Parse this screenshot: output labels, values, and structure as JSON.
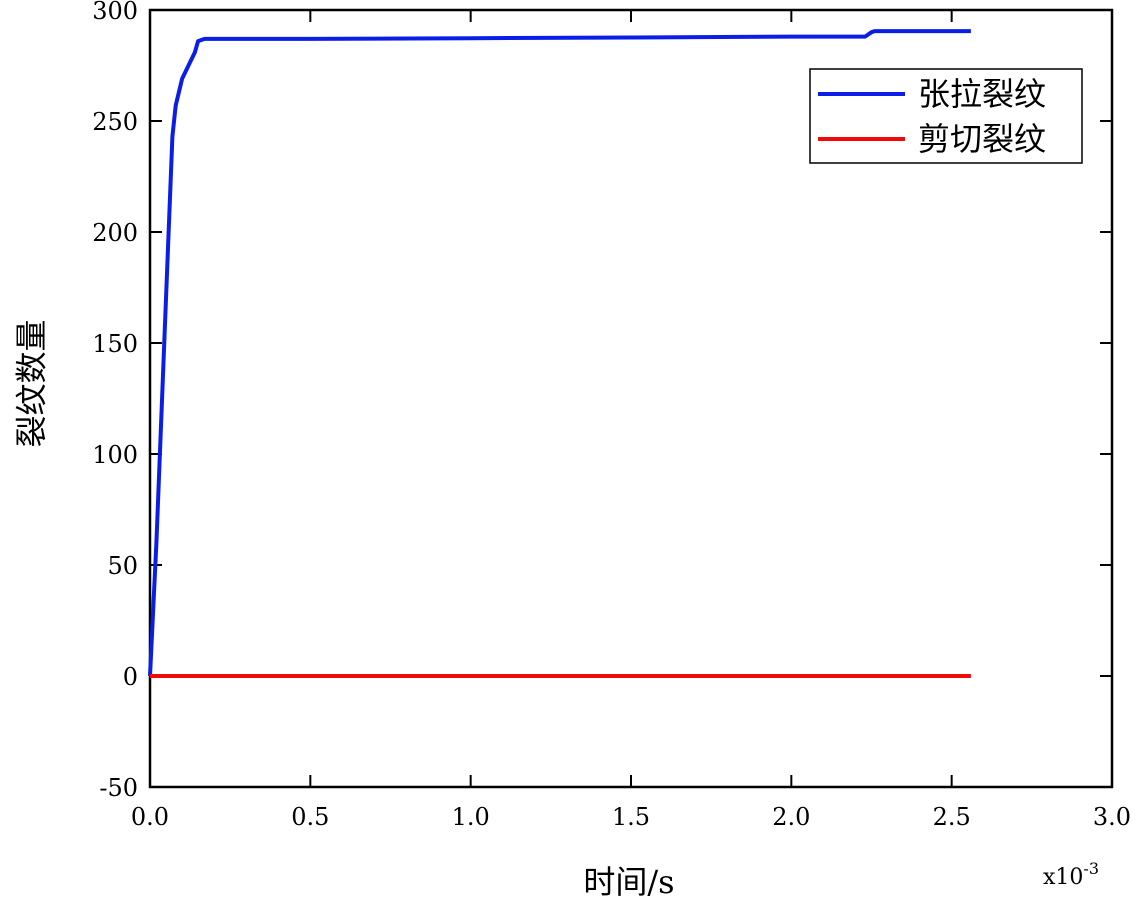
{
  "chart_data": {
    "type": "line",
    "title": "",
    "xlabel": "时间/s",
    "ylabel": "裂纹数量",
    "x_exponent_label": "x10",
    "x_exponent_power": "-3",
    "xlim": [
      0,
      3.0
    ],
    "ylim": [
      -50,
      300
    ],
    "xticks": [
      "0.0",
      "0.5",
      "1.0",
      "1.5",
      "2.0",
      "2.5",
      "3.0"
    ],
    "xtick_values": [
      0,
      0.5,
      1.0,
      1.5,
      2.0,
      2.5,
      3.0
    ],
    "yticks": [
      "-50",
      "0",
      "50",
      "100",
      "150",
      "200",
      "250",
      "300"
    ],
    "ytick_values": [
      -50,
      0,
      50,
      100,
      150,
      200,
      250,
      300
    ],
    "grid": false,
    "legend_position": "top-right",
    "series": [
      {
        "name": "张拉裂纹",
        "color": "#0a1ee8",
        "x": [
          0,
          0.02,
          0.05,
          0.07,
          0.08,
          0.1,
          0.12,
          0.14,
          0.15,
          0.17,
          0.5,
          1.0,
          1.5,
          2.0,
          2.23,
          2.25,
          2.26,
          2.56
        ],
        "y": [
          0,
          60,
          170,
          243,
          257,
          269,
          275,
          281,
          286,
          287,
          287,
          287.3,
          287.6,
          288,
          288,
          290,
          290.5,
          290.5
        ]
      },
      {
        "name": "剪切裂纹",
        "color": "#f00a0a",
        "x": [
          0,
          2.56
        ],
        "y": [
          0,
          0
        ]
      }
    ]
  }
}
